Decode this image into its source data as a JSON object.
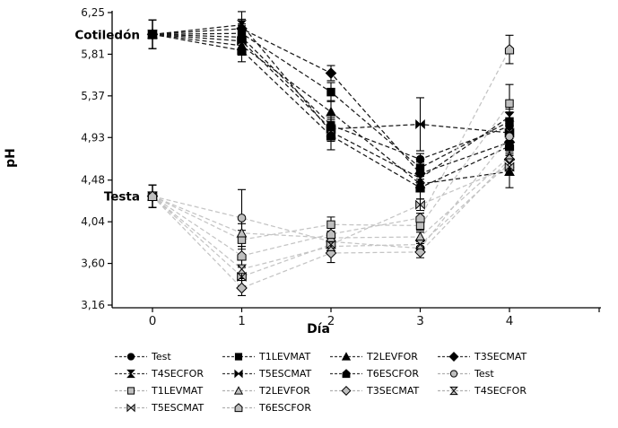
{
  "chart_data": {
    "type": "line",
    "title": "",
    "xlabel": "Día",
    "ylabel": "pH",
    "x": [
      0,
      1,
      2,
      3,
      4
    ],
    "x_tick_labels": [
      "0",
      "1",
      "2",
      "3",
      "4"
    ],
    "y_tick_values": [
      6.25,
      5.81,
      5.37,
      4.93,
      4.48,
      4.04,
      3.6,
      3.16
    ],
    "y_tick_labels": [
      "6,25",
      "5,81",
      "5,37",
      "4,93",
      "4,48",
      "4,04",
      "3,60",
      "3,16"
    ],
    "ylim": [
      3.16,
      6.25
    ],
    "grid": false,
    "legend_position": "bottom",
    "annotations": [
      {
        "text": "Cotiledón",
        "x": 0,
        "y": 6.02
      },
      {
        "text": "Testa",
        "x": 0,
        "y": 4.31
      }
    ],
    "groups": [
      {
        "name": "Cotiledón",
        "color": "#000000"
      },
      {
        "name": "Testa",
        "color": "#bfbfbf"
      }
    ],
    "series": [
      {
        "label": "Test",
        "group": "Cotiledón",
        "marker": "circle",
        "fill": "#000000",
        "line": "#1a1a1a",
        "values": [
          6.02,
          5.99,
          5.06,
          4.7,
          5.05
        ],
        "errors": [
          0.15,
          0.12,
          0.08,
          0.06,
          0.08
        ]
      },
      {
        "label": "T1LEVMAT",
        "group": "Cotiledón",
        "marker": "square",
        "fill": "#000000",
        "line": "#1a1a1a",
        "values": [
          6.02,
          6.03,
          5.41,
          4.61,
          5.1
        ],
        "errors": [
          0.15,
          0.1,
          0.1,
          0.06,
          0.1
        ]
      },
      {
        "label": "T2LEVFOR",
        "group": "Cotiledón",
        "marker": "triangle",
        "fill": "#000000",
        "line": "#1a1a1a",
        "values": [
          6.02,
          5.9,
          5.2,
          4.44,
          4.57
        ],
        "errors": [
          0.15,
          0.1,
          0.12,
          0.08,
          0.17
        ]
      },
      {
        "label": "T3SECMAT",
        "group": "Cotiledón",
        "marker": "diamond",
        "fill": "#000000",
        "line": "#1a1a1a",
        "values": [
          6.02,
          6.08,
          5.61,
          4.55,
          4.88
        ],
        "errors": [
          0.15,
          0.1,
          0.08,
          0.06,
          0.08
        ]
      },
      {
        "label": "T4SECFOR",
        "group": "Cotiledón",
        "marker": "hourglass",
        "fill": "#000000",
        "line": "#1a1a1a",
        "values": [
          6.02,
          6.12,
          4.99,
          4.5,
          5.15
        ],
        "errors": [
          0.15,
          0.14,
          0.1,
          0.06,
          0.08
        ]
      },
      {
        "label": "T5ESCMAT",
        "group": "Cotiledón",
        "marker": "bowtie",
        "fill": "#000000",
        "line": "#1a1a1a",
        "values": [
          6.02,
          5.95,
          5.02,
          5.07,
          4.98
        ],
        "errors": [
          0.15,
          0.1,
          0.1,
          0.28,
          0.08
        ]
      },
      {
        "label": "T6ESCFOR",
        "group": "Cotiledón",
        "marker": "pentagon",
        "fill": "#000000",
        "line": "#1a1a1a",
        "values": [
          6.02,
          5.85,
          4.95,
          4.4,
          4.84
        ],
        "errors": [
          0.15,
          0.12,
          0.15,
          0.12,
          0.08
        ]
      },
      {
        "label": "Test",
        "group": "Testa",
        "marker": "circle",
        "fill": "#bfbfbf",
        "line": "#c4c4c4",
        "values": [
          4.31,
          4.08,
          3.83,
          3.76,
          4.94
        ],
        "errors": [
          0.12,
          0.3,
          0.07,
          0.05,
          0.08
        ]
      },
      {
        "label": "T1LEVMAT",
        "group": "Testa",
        "marker": "square",
        "fill": "#bfbfbf",
        "line": "#c4c4c4",
        "values": [
          4.31,
          3.85,
          4.01,
          4.0,
          5.29
        ],
        "errors": [
          0.12,
          0.1,
          0.08,
          0.05,
          0.2
        ]
      },
      {
        "label": "T2LEVFOR",
        "group": "Testa",
        "marker": "triangle",
        "fill": "#bfbfbf",
        "line": "#c4c4c4",
        "values": [
          4.31,
          3.92,
          3.87,
          3.88,
          4.73
        ],
        "errors": [
          0.12,
          0.1,
          0.07,
          0.05,
          0.1
        ]
      },
      {
        "label": "T3SECMAT",
        "group": "Testa",
        "marker": "diamond",
        "fill": "#bfbfbf",
        "line": "#c4c4c4",
        "values": [
          4.31,
          3.34,
          3.71,
          3.72,
          4.7
        ],
        "errors": [
          0.12,
          0.08,
          0.1,
          0.06,
          0.08
        ]
      },
      {
        "label": "T4SECFOR",
        "group": "Testa",
        "marker": "hourglass",
        "fill": "#bfbfbf",
        "line": "#c4c4c4",
        "values": [
          4.31,
          3.54,
          3.78,
          3.8,
          4.66
        ],
        "errors": [
          0.12,
          0.1,
          0.07,
          0.05,
          0.08
        ]
      },
      {
        "label": "T5ESCMAT",
        "group": "Testa",
        "marker": "bowtie",
        "fill": "#bfbfbf",
        "line": "#c4c4c4",
        "values": [
          4.31,
          3.46,
          3.8,
          4.22,
          4.62
        ],
        "errors": [
          0.12,
          0.1,
          0.07,
          0.06,
          0.08
        ]
      },
      {
        "label": "T6ESCFOR",
        "group": "Testa",
        "marker": "pentagon",
        "fill": "#bfbfbf",
        "line": "#c4c4c4",
        "values": [
          4.31,
          3.68,
          3.91,
          4.08,
          5.86
        ],
        "errors": [
          0.12,
          0.1,
          0.07,
          0.05,
          0.15
        ]
      }
    ]
  }
}
